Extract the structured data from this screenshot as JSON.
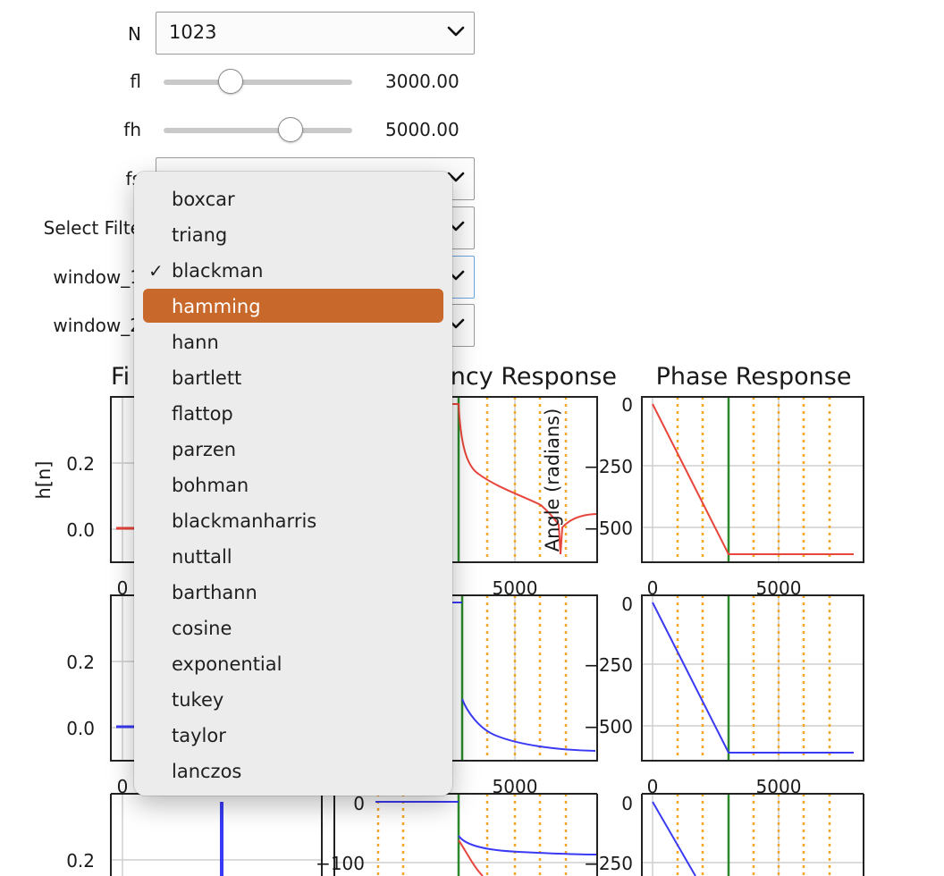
{
  "controls": {
    "n": {
      "label": "N",
      "value": "1023"
    },
    "fl": {
      "label": "fl",
      "value": "3000.00",
      "fraction": 0.35
    },
    "fh": {
      "label": "fh",
      "value": "5000.00",
      "fraction": 0.67
    },
    "fs": {
      "label": "fs"
    },
    "filter_type": {
      "label": "Select Filte"
    },
    "window_1": {
      "label": "window_1"
    },
    "window_2": {
      "label": "window_2"
    }
  },
  "dropdown": {
    "items": [
      "boxcar",
      "triang",
      "blackman",
      "hamming",
      "hann",
      "bartlett",
      "flattop",
      "parzen",
      "bohman",
      "blackmanharris",
      "nuttall",
      "barthann",
      "cosine",
      "exponential",
      "tukey",
      "taylor",
      "lanczos"
    ],
    "checked": "blackman",
    "highlighted": "hamming",
    "check_glyph": "✓"
  },
  "figure": {
    "titles": {
      "col1": "Fi",
      "col2": "ncy Response",
      "col3": "Phase Response"
    },
    "ylabel_left": "h[n]",
    "ylabel_phase": "Angle (radians)",
    "colors": {
      "row1": "#e8453c",
      "row2": "#3a3af5",
      "cutoff": "#2a8a2a",
      "stop": "#f5a623"
    },
    "ticks": {
      "h_y": [
        "0.2",
        "0.0"
      ],
      "zero": "0",
      "freq_x": "5000",
      "phase_y": [
        "0",
        "−250",
        "−500"
      ],
      "mag_y_row3": [
        "0",
        "−100"
      ]
    }
  }
}
